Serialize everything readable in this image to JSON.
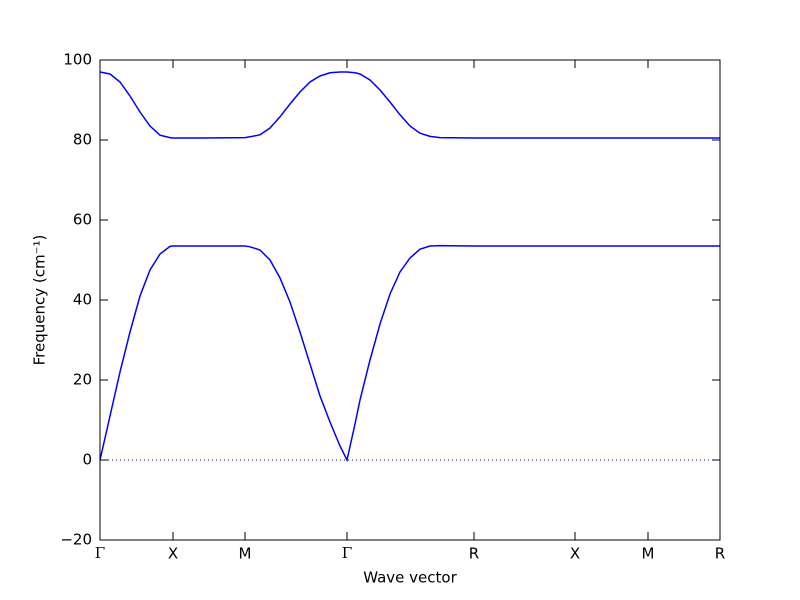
{
  "chart_data": {
    "type": "line",
    "xlabel": "Wave vector",
    "ylabel": "Frequency (cm⁻¹)",
    "x": [
      0,
      0.1,
      0.2,
      0.3,
      0.4,
      0.5,
      0.6,
      0.7,
      0.73,
      1.0,
      1.45,
      1.5,
      1.6,
      1.7,
      1.8,
      1.9,
      2.0,
      2.1,
      2.2,
      2.3,
      2.4,
      2.47,
      2.55,
      2.6,
      2.7,
      2.8,
      2.9,
      3.0,
      3.1,
      3.2,
      3.3,
      3.4,
      3.74,
      4.75,
      5.48,
      6.2
    ],
    "series": [
      {
        "color": "#0000ff",
        "values": [
          0,
          11,
          22,
          32,
          41,
          47.5,
          51.5,
          53.4,
          53.5,
          53.5,
          53.5,
          53.3,
          52.5,
          50,
          45.5,
          39.5,
          32,
          24,
          16,
          9.5,
          3.5,
          0,
          9,
          15,
          25,
          34,
          41.5,
          47,
          50.5,
          52.7,
          53.5,
          53.6,
          53.5,
          53.5,
          53.5,
          53.5
        ]
      },
      {
        "color": "#0000ff",
        "values": [
          97,
          96.5,
          94.5,
          91,
          87,
          83.5,
          81.2,
          80.6,
          80.5,
          80.5,
          80.6,
          80.8,
          81.3,
          83,
          85.8,
          89,
          92,
          94.5,
          96,
          96.8,
          97,
          97,
          96.8,
          96.5,
          95,
          92.5,
          89.5,
          86.3,
          83.5,
          81.7,
          80.9,
          80.6,
          80.5,
          80.5,
          80.5,
          80.5
        ]
      }
    ],
    "xlim": [
      0,
      6.2
    ],
    "xticks": [
      {
        "value": 0,
        "label": "Γ"
      },
      {
        "value": 0.73,
        "label": "X"
      },
      {
        "value": 1.45,
        "label": "M"
      },
      {
        "value": 2.47,
        "label": "Γ"
      },
      {
        "value": 3.74,
        "label": "R"
      },
      {
        "value": 4.75,
        "label": "X"
      },
      {
        "value": 5.48,
        "label": "M"
      },
      {
        "value": 6.2,
        "label": "R"
      }
    ],
    "ylim": [
      -20,
      100
    ],
    "yticks": [
      {
        "value": -20,
        "label": "−20"
      },
      0,
      20,
      40,
      60,
      80,
      100
    ],
    "hline": 0,
    "hline_color": "#0000ff"
  }
}
